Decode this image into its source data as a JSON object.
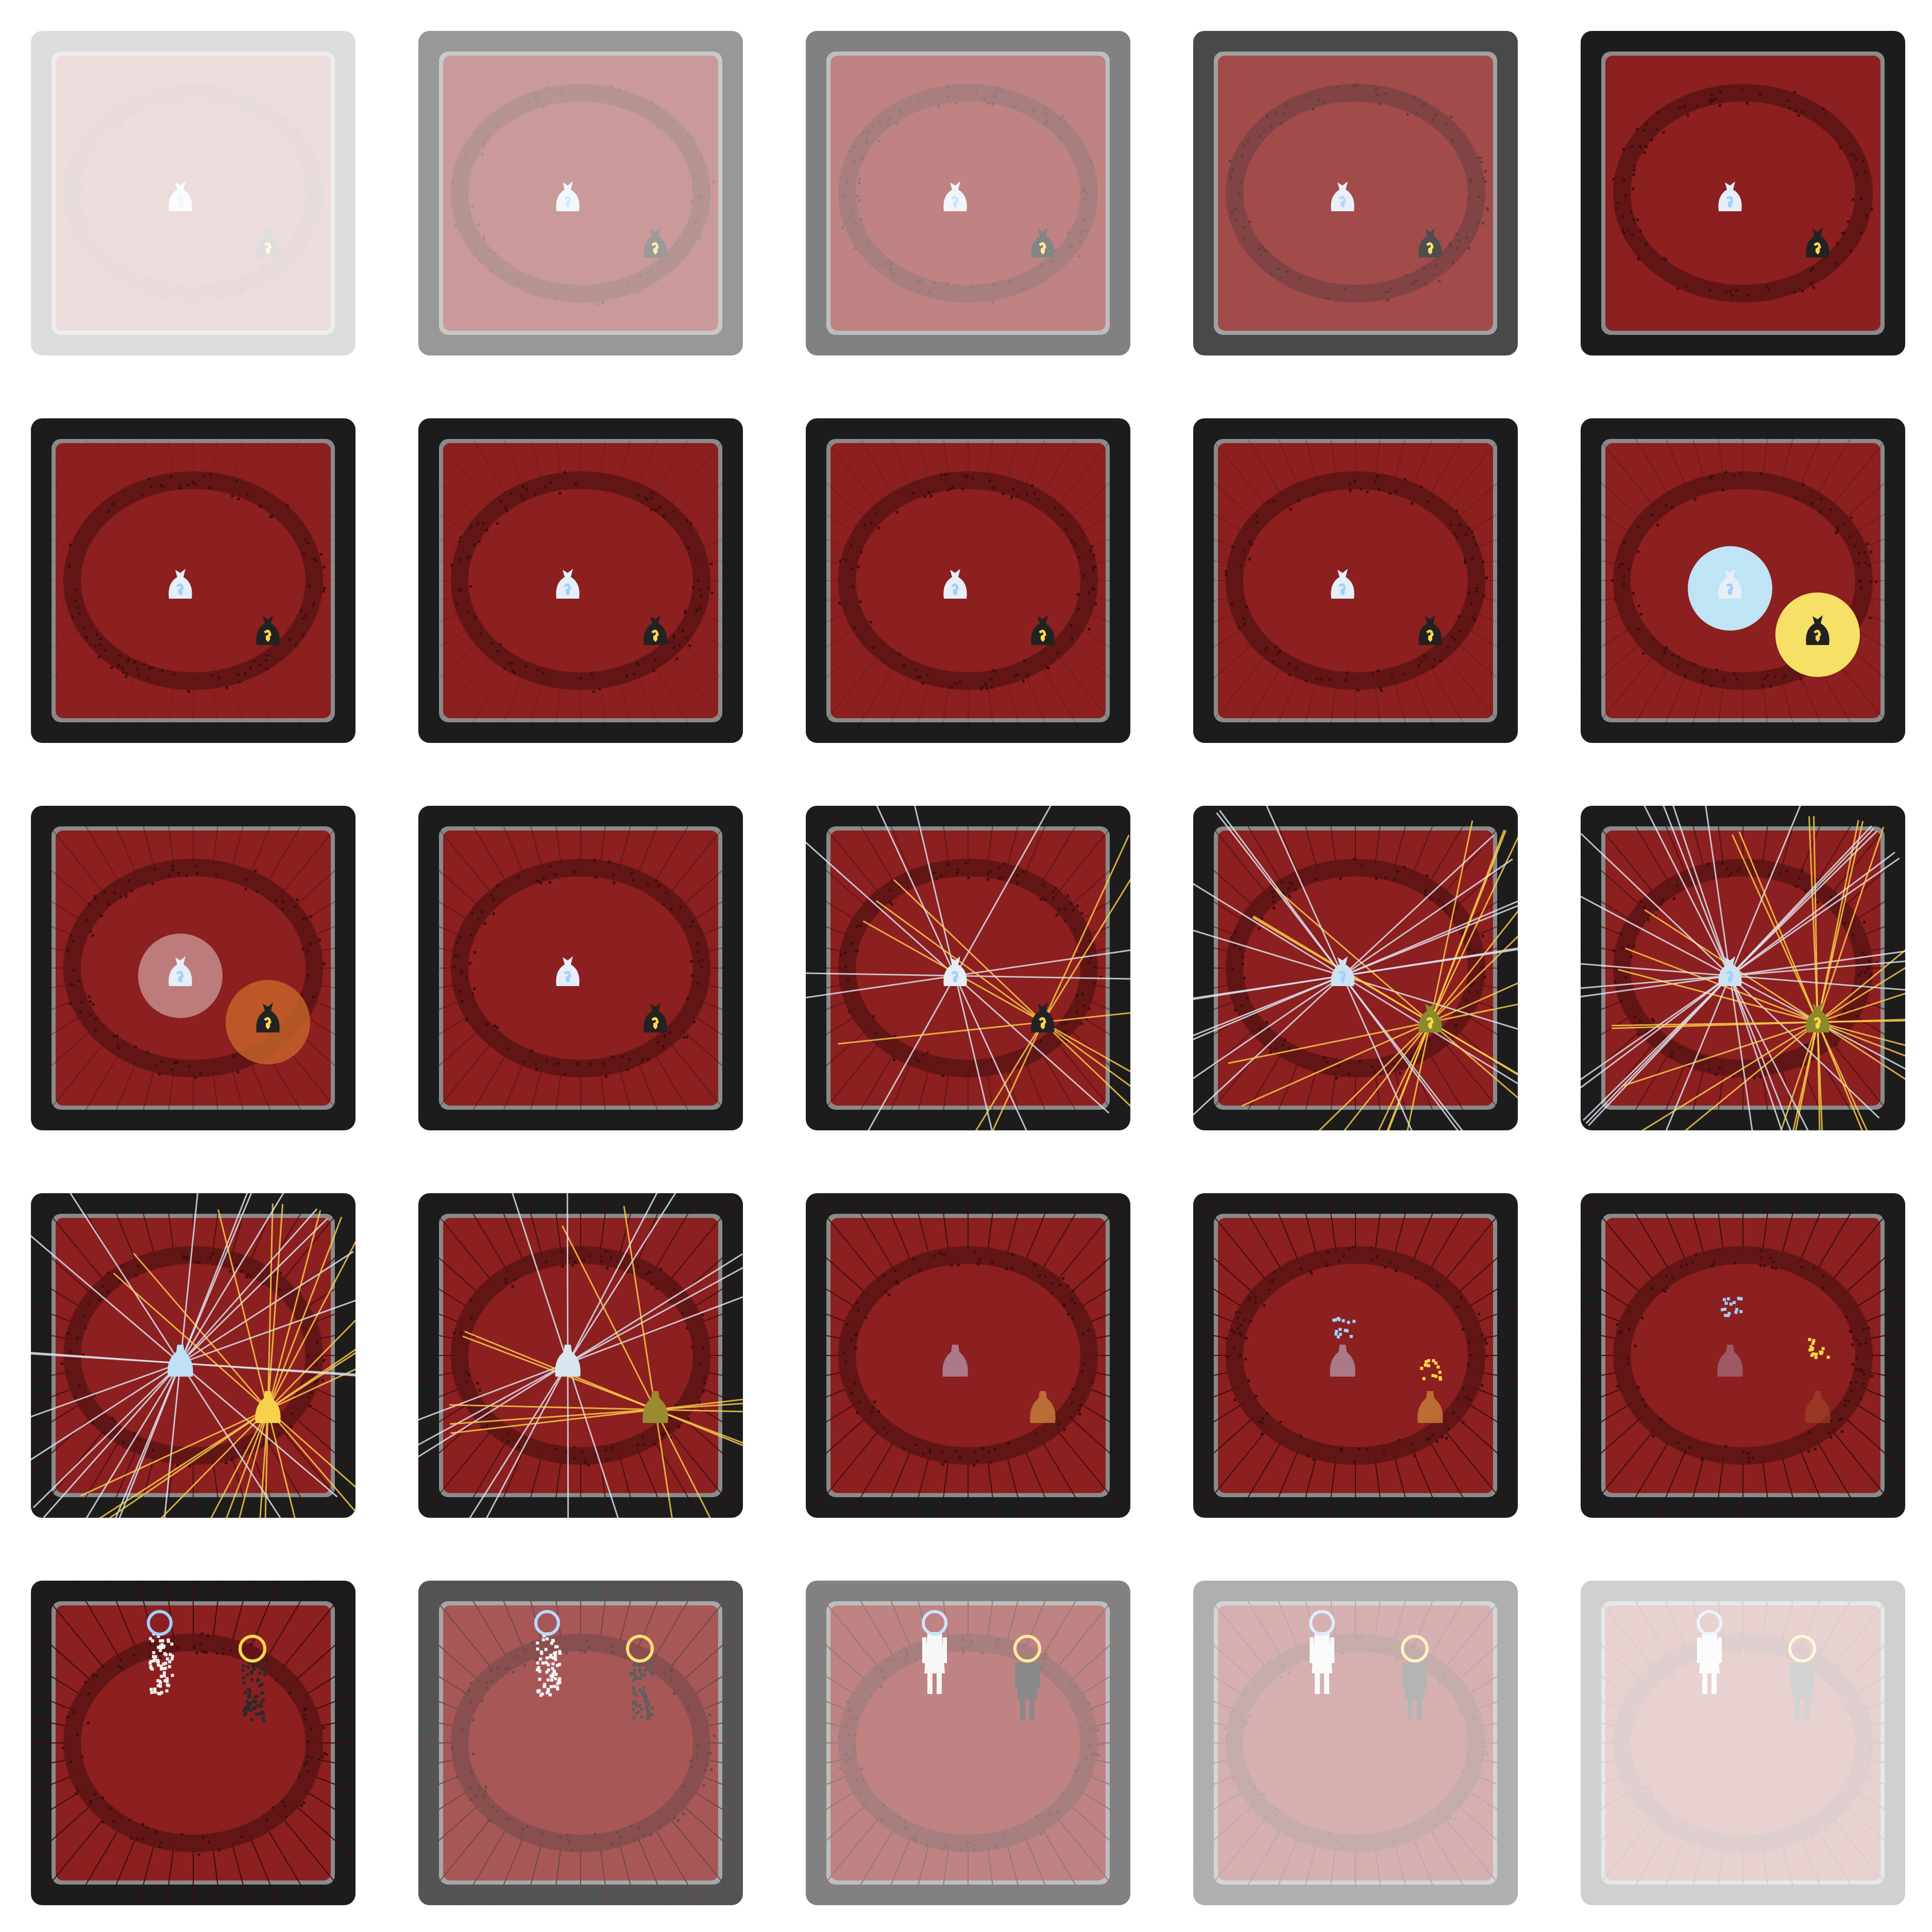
{
  "sheet": {
    "title": "",
    "frame_count": 25,
    "columns": 5,
    "rows": 5
  },
  "colors": {
    "board_outer": "#1c1c1c",
    "board_inner_border": "#8a8a8a",
    "felt": "#8c1f1f",
    "ring": "#5a1414",
    "light_token": "#e6eef7",
    "light_accent": "#9fd0ff",
    "dark_token": "#222222",
    "dark_accent": "#ffd84a",
    "light_glow": "#bfe4f5",
    "dark_glow": "#f7e066",
    "dark_glow_fading": "#c8662a",
    "beam_light": "#dfe9f5",
    "beam_dark": "#ffd24a"
  },
  "icons": {
    "light_piece": "light-token-icon",
    "dark_piece": "dark-token-icon",
    "light_halo": "light-halo-icon",
    "dark_halo": "dark-halo-icon"
  },
  "frames": [
    {
      "fade": 0.15,
      "effect": "none",
      "token_state": "bag",
      "beams": 0,
      "lines": 0
    },
    {
      "fade": 0.45,
      "effect": "none",
      "token_state": "bag",
      "beams": 0,
      "lines": 0
    },
    {
      "fade": 0.55,
      "effect": "none",
      "token_state": "bag",
      "beams": 0,
      "lines": 0
    },
    {
      "fade": 0.8,
      "effect": "none",
      "token_state": "bag",
      "beams": 0,
      "lines": 0
    },
    {
      "fade": 1.0,
      "effect": "none",
      "token_state": "bag",
      "beams": 0,
      "lines": 0
    },
    {
      "fade": 1.0,
      "effect": "none",
      "token_state": "bag",
      "beams": 0,
      "lines": 0.1
    },
    {
      "fade": 1.0,
      "effect": "none",
      "token_state": "bag",
      "beams": 0,
      "lines": 0.15
    },
    {
      "fade": 1.0,
      "effect": "none",
      "token_state": "bag",
      "beams": 0,
      "lines": 0.2
    },
    {
      "fade": 1.0,
      "effect": "none",
      "token_state": "bag",
      "beams": 0,
      "lines": 0.25
    },
    {
      "fade": 1.0,
      "effect": "glow",
      "token_state": "bag",
      "beams": 0,
      "lines": 0.3
    },
    {
      "fade": 1.0,
      "effect": "glow-fade",
      "token_state": "bag",
      "beams": 0,
      "lines": 0.4
    },
    {
      "fade": 1.0,
      "effect": "none",
      "token_state": "bag",
      "beams": 0,
      "lines": 0.45
    },
    {
      "fade": 1.0,
      "effect": "beams",
      "token_state": "bag",
      "beams": 12,
      "lines": 0.5
    },
    {
      "fade": 1.0,
      "effect": "beams",
      "token_state": "bag-tint",
      "beams": 22,
      "lines": 0.6
    },
    {
      "fade": 1.0,
      "effect": "beams",
      "token_state": "bag-tint",
      "beams": 30,
      "lines": 0.7
    },
    {
      "fade": 1.0,
      "effect": "beams",
      "token_state": "silhouette",
      "beams": 24,
      "lines": 0.8
    },
    {
      "fade": 1.0,
      "effect": "beams",
      "token_state": "silhouette-dim",
      "beams": 14,
      "lines": 0.85
    },
    {
      "fade": 1.0,
      "effect": "none",
      "token_state": "silhouette-muted",
      "beams": 0,
      "lines": 0.9
    },
    {
      "fade": 1.0,
      "effect": "sparks",
      "token_state": "silhouette-muted",
      "beams": 0,
      "lines": 0.95
    },
    {
      "fade": 1.0,
      "effect": "sparks-rise",
      "token_state": "dissolve",
      "beams": 0,
      "lines": 1.0
    },
    {
      "fade": 1.0,
      "effect": "halo",
      "token_state": "pixel-figure",
      "beams": 0,
      "lines": 1.0
    },
    {
      "fade": 0.75,
      "effect": "halo",
      "token_state": "pixel-figure",
      "beams": 0,
      "lines": 1.0
    },
    {
      "fade": 0.55,
      "effect": "halo",
      "token_state": "figure",
      "beams": 0,
      "lines": 1.0
    },
    {
      "fade": 0.35,
      "effect": "halo",
      "token_state": "figure",
      "beams": 0,
      "lines": 1.0
    },
    {
      "fade": 0.2,
      "effect": "halo",
      "token_state": "figure",
      "beams": 0,
      "lines": 1.0
    }
  ]
}
